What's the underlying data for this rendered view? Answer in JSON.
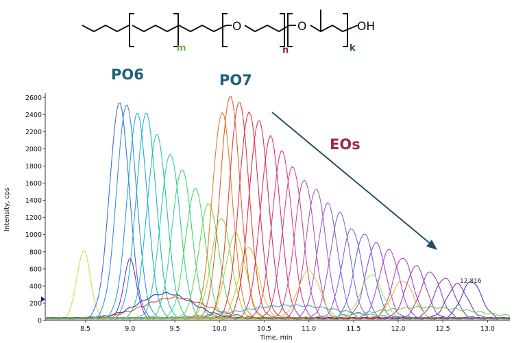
{
  "structure": {
    "labels": {
      "o1": "O",
      "o2": "O",
      "oh": "OH",
      "m": "m",
      "n": "n",
      "k": "k"
    },
    "colors": {
      "m": "#6cb33f",
      "n": "#8b2252",
      "k": "#1f4e79"
    }
  },
  "annotations": {
    "po6": {
      "text": "PO6",
      "color": "#1f5f7a"
    },
    "po7": {
      "text": "PO7",
      "color": "#1f5f7a"
    },
    "eos": {
      "text": "EOs",
      "color": "#9b2a4a"
    },
    "peak_label": "12.816",
    "arrow_color": "#1f4e66"
  },
  "chart_data": {
    "type": "line",
    "xlabel": "Time, min",
    "ylabel": "Intensity, cps",
    "xlim": [
      8.05,
      13.25
    ],
    "ylim": [
      0,
      2650
    ],
    "x_ticks": [
      "8.5",
      "9.0",
      "9.5",
      "10.0",
      "10.5",
      "11.0",
      "11.5",
      "12.0",
      "12.5",
      "13.0"
    ],
    "y_ticks": [
      "0",
      "200",
      "400",
      "600",
      "800",
      "1000",
      "1200",
      "1400",
      "1600",
      "1800",
      "2000",
      "2200",
      "2400",
      "2600"
    ],
    "grid": false,
    "series": [
      {
        "center": 8.48,
        "height": 790,
        "width": 0.075,
        "color": "#c7e04a"
      },
      {
        "center": 8.88,
        "height": 2510,
        "width": 0.11,
        "color": "#3c6fd6"
      },
      {
        "center": 8.96,
        "height": 2490,
        "width": 0.11,
        "color": "#2f90e8"
      },
      {
        "center": 9.08,
        "height": 2390,
        "width": 0.11,
        "color": "#18a8e0"
      },
      {
        "center": 9.18,
        "height": 2390,
        "width": 0.11,
        "color": "#1ab8c8"
      },
      {
        "center": 9.3,
        "height": 2140,
        "width": 0.11,
        "color": "#20c4b0"
      },
      {
        "center": 9.45,
        "height": 1920,
        "width": 0.11,
        "color": "#2ccf98"
      },
      {
        "center": 9.58,
        "height": 1740,
        "width": 0.11,
        "color": "#3bd47c"
      },
      {
        "center": 9.73,
        "height": 1510,
        "width": 0.11,
        "color": "#4bd860"
      },
      {
        "center": 9.88,
        "height": 1340,
        "width": 0.11,
        "color": "#66d84a"
      },
      {
        "center": 10.02,
        "height": 1170,
        "width": 0.11,
        "color": "#8fd63c"
      },
      {
        "center": 10.18,
        "height": 990,
        "width": 0.11,
        "color": "#b4d232"
      },
      {
        "center": 10.33,
        "height": 830,
        "width": 0.11,
        "color": "#d2cc2a"
      },
      {
        "center": 9.0,
        "height": 690,
        "width": 0.07,
        "color": "#7a2cc8"
      },
      {
        "center": 10.03,
        "height": 2400,
        "width": 0.11,
        "color": "#f07a22"
      },
      {
        "center": 10.12,
        "height": 2600,
        "width": 0.11,
        "color": "#ee5a2a"
      },
      {
        "center": 10.22,
        "height": 2530,
        "width": 0.11,
        "color": "#e8402e"
      },
      {
        "center": 10.33,
        "height": 2410,
        "width": 0.11,
        "color": "#e33040"
      },
      {
        "center": 10.44,
        "height": 2310,
        "width": 0.11,
        "color": "#e42a58"
      },
      {
        "center": 10.57,
        "height": 2120,
        "width": 0.11,
        "color": "#e0306e"
      },
      {
        "center": 10.7,
        "height": 1950,
        "width": 0.11,
        "color": "#d83a86"
      },
      {
        "center": 10.82,
        "height": 1770,
        "width": 0.11,
        "color": "#cc449c"
      },
      {
        "center": 10.95,
        "height": 1620,
        "width": 0.11,
        "color": "#bc4cb0"
      },
      {
        "center": 11.08,
        "height": 1510,
        "width": 0.11,
        "color": "#a854c0"
      },
      {
        "center": 11.21,
        "height": 1340,
        "width": 0.11,
        "color": "#965ccc"
      },
      {
        "center": 11.35,
        "height": 1230,
        "width": 0.11,
        "color": "#8462d6"
      },
      {
        "center": 11.48,
        "height": 1050,
        "width": 0.11,
        "color": "#7068dc"
      },
      {
        "center": 11.62,
        "height": 990,
        "width": 0.11,
        "color": "#5e6ee0"
      },
      {
        "center": 11.75,
        "height": 880,
        "width": 0.11,
        "color": "#9b46d8"
      },
      {
        "center": 11.9,
        "height": 800,
        "width": 0.11,
        "color": "#c03cd0"
      },
      {
        "center": 12.05,
        "height": 710,
        "width": 0.11,
        "color": "#b23ac8"
      },
      {
        "center": 12.2,
        "height": 610,
        "width": 0.11,
        "color": "#a43ac0"
      },
      {
        "center": 12.36,
        "height": 540,
        "width": 0.11,
        "color": "#9840b8"
      },
      {
        "center": 12.52,
        "height": 470,
        "width": 0.11,
        "color": "#8a3ab0"
      },
      {
        "center": 12.66,
        "height": 400,
        "width": 0.11,
        "color": "#7030b8"
      },
      {
        "center": 12.82,
        "height": 430,
        "width": 0.11,
        "color": "#3d3ac8"
      },
      {
        "center": 11.7,
        "height": 510,
        "width": 0.12,
        "color": "#a6e84c"
      },
      {
        "center": 12.05,
        "height": 440,
        "width": 0.12,
        "color": "#f2b02a"
      },
      {
        "center": 11.0,
        "height": 560,
        "width": 0.12,
        "color": "#e8c632"
      },
      {
        "center": 9.4,
        "height": 290,
        "width": 0.3,
        "color": "#2a3a9a"
      },
      {
        "center": 9.5,
        "height": 240,
        "width": 0.35,
        "color": "#d04a3a"
      },
      {
        "center": 10.8,
        "height": 150,
        "width": 0.55,
        "color": "#3aa0c8"
      },
      {
        "center": 12.3,
        "height": 130,
        "width": 0.55,
        "color": "#66cc44"
      }
    ]
  }
}
